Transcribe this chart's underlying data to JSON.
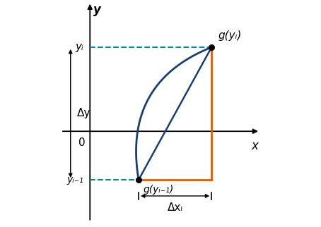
{
  "figsize": [
    4.54,
    3.22
  ],
  "dpi": 100,
  "bg_color": "white",
  "axis_color": "black",
  "x_label": "x",
  "y_label": "y",
  "pt_low": [
    0.3,
    -0.3
  ],
  "pt_high": [
    0.75,
    0.52
  ],
  "curve_color": "#1a3f6f",
  "triangle_color": "#d45f10",
  "dashed_color": "#008b8b",
  "delta_y_label": "Δy",
  "delta_x_label": "Δxᵢ",
  "g_yi_label": "g(yᵢ)",
  "g_yi1_label": "g(yᵢ₋₁)",
  "yi_label": "yᵢ",
  "yi1_label": "yᵢ₋₁",
  "zero_label": "0",
  "xlim": [
    -0.18,
    1.05
  ],
  "ylim": [
    -0.58,
    0.8
  ],
  "curve_ctrl_x": 0.2,
  "curve_ctrl_y": 0.3
}
